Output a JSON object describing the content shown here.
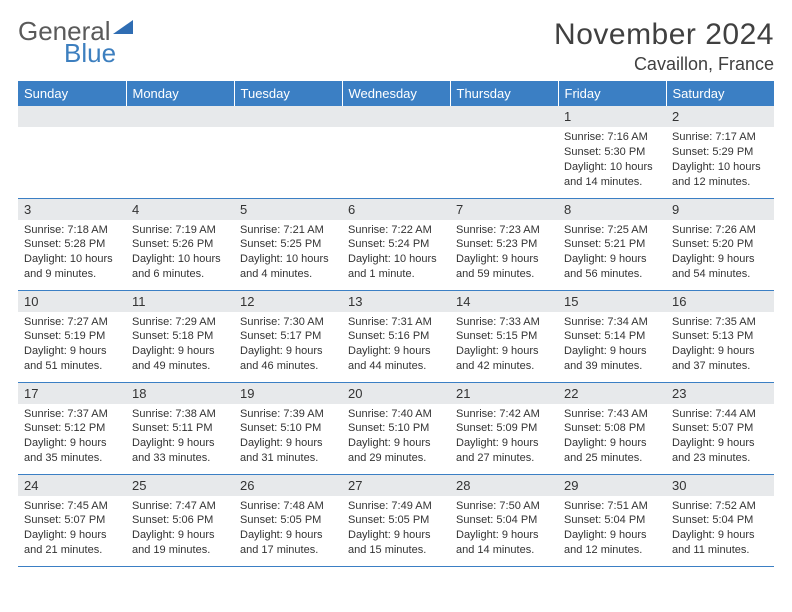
{
  "logo": {
    "word1": "General",
    "word2": "Blue"
  },
  "title": "November 2024",
  "location": "Cavaillon, France",
  "colors": {
    "header_bg": "#3b7fc4",
    "header_text": "#ffffff",
    "daynum_bg": "#e7e9eb",
    "border": "#3b7fc4",
    "text": "#333333",
    "logo_gray": "#5a5a5a",
    "logo_blue": "#3d7fbf"
  },
  "weekdays": [
    "Sunday",
    "Monday",
    "Tuesday",
    "Wednesday",
    "Thursday",
    "Friday",
    "Saturday"
  ],
  "weeks": [
    [
      {
        "n": "",
        "sunrise": "",
        "sunset": "",
        "daylight1": "",
        "daylight2": ""
      },
      {
        "n": "",
        "sunrise": "",
        "sunset": "",
        "daylight1": "",
        "daylight2": ""
      },
      {
        "n": "",
        "sunrise": "",
        "sunset": "",
        "daylight1": "",
        "daylight2": ""
      },
      {
        "n": "",
        "sunrise": "",
        "sunset": "",
        "daylight1": "",
        "daylight2": ""
      },
      {
        "n": "",
        "sunrise": "",
        "sunset": "",
        "daylight1": "",
        "daylight2": ""
      },
      {
        "n": "1",
        "sunrise": "Sunrise: 7:16 AM",
        "sunset": "Sunset: 5:30 PM",
        "daylight1": "Daylight: 10 hours",
        "daylight2": "and 14 minutes."
      },
      {
        "n": "2",
        "sunrise": "Sunrise: 7:17 AM",
        "sunset": "Sunset: 5:29 PM",
        "daylight1": "Daylight: 10 hours",
        "daylight2": "and 12 minutes."
      }
    ],
    [
      {
        "n": "3",
        "sunrise": "Sunrise: 7:18 AM",
        "sunset": "Sunset: 5:28 PM",
        "daylight1": "Daylight: 10 hours",
        "daylight2": "and 9 minutes."
      },
      {
        "n": "4",
        "sunrise": "Sunrise: 7:19 AM",
        "sunset": "Sunset: 5:26 PM",
        "daylight1": "Daylight: 10 hours",
        "daylight2": "and 6 minutes."
      },
      {
        "n": "5",
        "sunrise": "Sunrise: 7:21 AM",
        "sunset": "Sunset: 5:25 PM",
        "daylight1": "Daylight: 10 hours",
        "daylight2": "and 4 minutes."
      },
      {
        "n": "6",
        "sunrise": "Sunrise: 7:22 AM",
        "sunset": "Sunset: 5:24 PM",
        "daylight1": "Daylight: 10 hours",
        "daylight2": "and 1 minute."
      },
      {
        "n": "7",
        "sunrise": "Sunrise: 7:23 AM",
        "sunset": "Sunset: 5:23 PM",
        "daylight1": "Daylight: 9 hours",
        "daylight2": "and 59 minutes."
      },
      {
        "n": "8",
        "sunrise": "Sunrise: 7:25 AM",
        "sunset": "Sunset: 5:21 PM",
        "daylight1": "Daylight: 9 hours",
        "daylight2": "and 56 minutes."
      },
      {
        "n": "9",
        "sunrise": "Sunrise: 7:26 AM",
        "sunset": "Sunset: 5:20 PM",
        "daylight1": "Daylight: 9 hours",
        "daylight2": "and 54 minutes."
      }
    ],
    [
      {
        "n": "10",
        "sunrise": "Sunrise: 7:27 AM",
        "sunset": "Sunset: 5:19 PM",
        "daylight1": "Daylight: 9 hours",
        "daylight2": "and 51 minutes."
      },
      {
        "n": "11",
        "sunrise": "Sunrise: 7:29 AM",
        "sunset": "Sunset: 5:18 PM",
        "daylight1": "Daylight: 9 hours",
        "daylight2": "and 49 minutes."
      },
      {
        "n": "12",
        "sunrise": "Sunrise: 7:30 AM",
        "sunset": "Sunset: 5:17 PM",
        "daylight1": "Daylight: 9 hours",
        "daylight2": "and 46 minutes."
      },
      {
        "n": "13",
        "sunrise": "Sunrise: 7:31 AM",
        "sunset": "Sunset: 5:16 PM",
        "daylight1": "Daylight: 9 hours",
        "daylight2": "and 44 minutes."
      },
      {
        "n": "14",
        "sunrise": "Sunrise: 7:33 AM",
        "sunset": "Sunset: 5:15 PM",
        "daylight1": "Daylight: 9 hours",
        "daylight2": "and 42 minutes."
      },
      {
        "n": "15",
        "sunrise": "Sunrise: 7:34 AM",
        "sunset": "Sunset: 5:14 PM",
        "daylight1": "Daylight: 9 hours",
        "daylight2": "and 39 minutes."
      },
      {
        "n": "16",
        "sunrise": "Sunrise: 7:35 AM",
        "sunset": "Sunset: 5:13 PM",
        "daylight1": "Daylight: 9 hours",
        "daylight2": "and 37 minutes."
      }
    ],
    [
      {
        "n": "17",
        "sunrise": "Sunrise: 7:37 AM",
        "sunset": "Sunset: 5:12 PM",
        "daylight1": "Daylight: 9 hours",
        "daylight2": "and 35 minutes."
      },
      {
        "n": "18",
        "sunrise": "Sunrise: 7:38 AM",
        "sunset": "Sunset: 5:11 PM",
        "daylight1": "Daylight: 9 hours",
        "daylight2": "and 33 minutes."
      },
      {
        "n": "19",
        "sunrise": "Sunrise: 7:39 AM",
        "sunset": "Sunset: 5:10 PM",
        "daylight1": "Daylight: 9 hours",
        "daylight2": "and 31 minutes."
      },
      {
        "n": "20",
        "sunrise": "Sunrise: 7:40 AM",
        "sunset": "Sunset: 5:10 PM",
        "daylight1": "Daylight: 9 hours",
        "daylight2": "and 29 minutes."
      },
      {
        "n": "21",
        "sunrise": "Sunrise: 7:42 AM",
        "sunset": "Sunset: 5:09 PM",
        "daylight1": "Daylight: 9 hours",
        "daylight2": "and 27 minutes."
      },
      {
        "n": "22",
        "sunrise": "Sunrise: 7:43 AM",
        "sunset": "Sunset: 5:08 PM",
        "daylight1": "Daylight: 9 hours",
        "daylight2": "and 25 minutes."
      },
      {
        "n": "23",
        "sunrise": "Sunrise: 7:44 AM",
        "sunset": "Sunset: 5:07 PM",
        "daylight1": "Daylight: 9 hours",
        "daylight2": "and 23 minutes."
      }
    ],
    [
      {
        "n": "24",
        "sunrise": "Sunrise: 7:45 AM",
        "sunset": "Sunset: 5:07 PM",
        "daylight1": "Daylight: 9 hours",
        "daylight2": "and 21 minutes."
      },
      {
        "n": "25",
        "sunrise": "Sunrise: 7:47 AM",
        "sunset": "Sunset: 5:06 PM",
        "daylight1": "Daylight: 9 hours",
        "daylight2": "and 19 minutes."
      },
      {
        "n": "26",
        "sunrise": "Sunrise: 7:48 AM",
        "sunset": "Sunset: 5:05 PM",
        "daylight1": "Daylight: 9 hours",
        "daylight2": "and 17 minutes."
      },
      {
        "n": "27",
        "sunrise": "Sunrise: 7:49 AM",
        "sunset": "Sunset: 5:05 PM",
        "daylight1": "Daylight: 9 hours",
        "daylight2": "and 15 minutes."
      },
      {
        "n": "28",
        "sunrise": "Sunrise: 7:50 AM",
        "sunset": "Sunset: 5:04 PM",
        "daylight1": "Daylight: 9 hours",
        "daylight2": "and 14 minutes."
      },
      {
        "n": "29",
        "sunrise": "Sunrise: 7:51 AM",
        "sunset": "Sunset: 5:04 PM",
        "daylight1": "Daylight: 9 hours",
        "daylight2": "and 12 minutes."
      },
      {
        "n": "30",
        "sunrise": "Sunrise: 7:52 AM",
        "sunset": "Sunset: 5:04 PM",
        "daylight1": "Daylight: 9 hours",
        "daylight2": "and 11 minutes."
      }
    ]
  ]
}
